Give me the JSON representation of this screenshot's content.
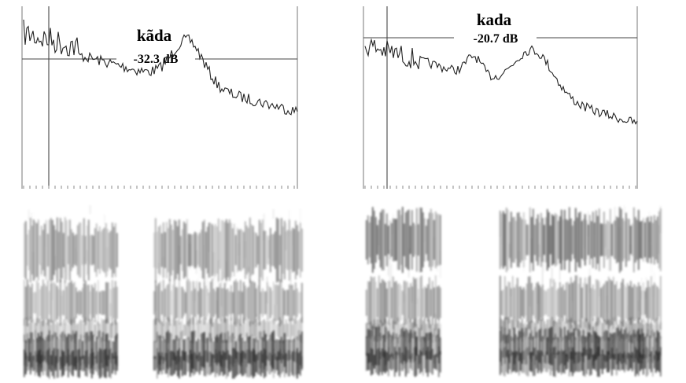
{
  "panels": [
    {
      "word": "kãda",
      "level": "-32.3 dB"
    },
    {
      "word": "kada",
      "level": "-20.7 dB"
    }
  ]
}
